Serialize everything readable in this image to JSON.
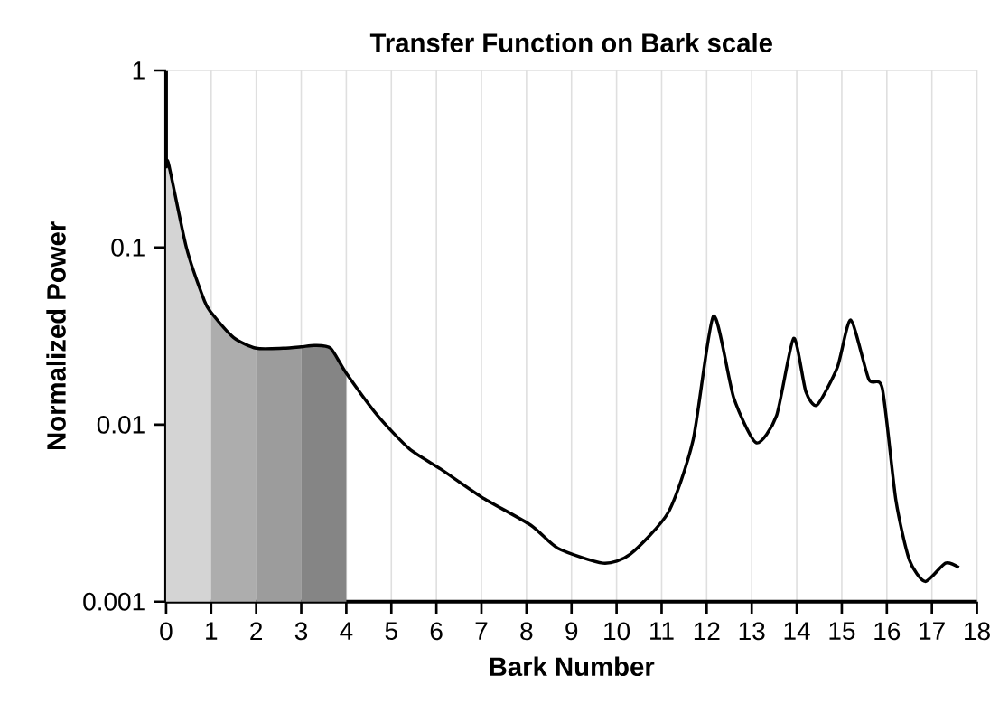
{
  "chart_data": {
    "type": "line",
    "title": "Transfer Function on Bark scale",
    "xlabel": "Bark Number",
    "ylabel": "Normalized Power",
    "log": "y",
    "grid": "x",
    "line_style": "solid",
    "marker": "none",
    "xlim": [
      0,
      18
    ],
    "xticks": [
      0,
      1,
      2,
      3,
      4,
      5,
      6,
      7,
      8,
      9,
      10,
      11,
      12,
      13,
      14,
      15,
      16,
      17,
      18
    ],
    "ylim": [
      0.001,
      1
    ],
    "yticks": [
      0.001,
      0.01,
      0.1,
      1
    ],
    "series": [
      {
        "type": "area",
        "color": "#d4d4d4",
        "x": [
          0,
          0.05,
          0.45,
          0.85,
          1
        ],
        "values": [
          0.28,
          0.3,
          0.1,
          0.05,
          0.043
        ]
      },
      {
        "type": "area",
        "color": "#adadad",
        "x": [
          1,
          1.5,
          2
        ],
        "values": [
          0.043,
          0.031,
          0.027
        ]
      },
      {
        "type": "area",
        "color": "#9c9c9c",
        "x": [
          2,
          2.6,
          3
        ],
        "values": [
          0.027,
          0.027,
          0.0275
        ]
      },
      {
        "type": "area",
        "color": "#858585",
        "x": [
          3,
          3.3,
          3.65,
          4
        ],
        "values": [
          0.0275,
          0.028,
          0.027,
          0.0195
        ]
      },
      {
        "color": "#000000",
        "x": [
          0,
          0.05,
          0.45,
          0.85,
          1,
          1.5,
          2,
          2.6,
          3,
          3.3,
          3.65,
          4,
          4.7,
          5.4,
          6.1,
          7,
          8.1,
          8.7,
          9.7,
          10.3,
          11.15,
          11.7,
          12.15,
          12.6,
          13.1,
          13.55,
          13.93,
          14.2,
          14.45,
          14.9,
          15.2,
          15.6,
          15.9,
          16.2,
          16.5,
          16.85,
          17.3,
          17.6
        ],
        "values": [
          0.28,
          0.3,
          0.1,
          0.05,
          0.043,
          0.031,
          0.027,
          0.027,
          0.0275,
          0.028,
          0.027,
          0.0195,
          0.0112,
          0.0073,
          0.0056,
          0.0039,
          0.0027,
          0.002,
          0.00165,
          0.00185,
          0.0032,
          0.0082,
          0.041,
          0.0142,
          0.0079,
          0.0112,
          0.0307,
          0.0154,
          0.0129,
          0.021,
          0.039,
          0.018,
          0.016,
          0.00375,
          0.00172,
          0.0013,
          0.00165,
          0.00156
        ]
      }
    ]
  }
}
